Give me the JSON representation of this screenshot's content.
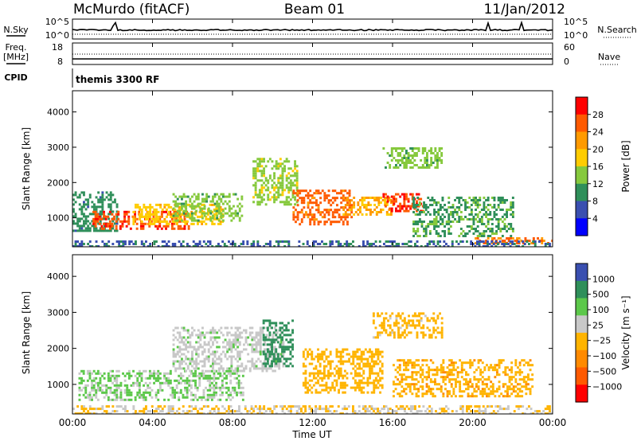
{
  "header": {
    "station": "McMurdo (fitACF)",
    "beam": "Beam 01",
    "date": "11/Jan/2012"
  },
  "noise_panel": {
    "left_label": "N.Sky",
    "right_label": "N.Search",
    "left_ticks": [
      "10^5",
      "10^0"
    ],
    "right_ticks": [
      "10^5",
      "10^0"
    ]
  },
  "freq_panel": {
    "left_label_1": "Freq.",
    "left_label_2": "[MHz]",
    "right_label": "Nave",
    "left_ticks": [
      "18",
      "8"
    ],
    "right_ticks": [
      "60",
      "0"
    ]
  },
  "cpid_panel": {
    "label": "CPID",
    "mode": "themis 3300 RF"
  },
  "power_panel": {
    "ylabel": "Slant Range [km]",
    "yticks": [
      "4000",
      "3000",
      "2000",
      "1000"
    ],
    "colorbar_label": "Power [dB]",
    "colorbar_ticks": [
      "28",
      "24",
      "20",
      "16",
      "12",
      "8",
      "4"
    ],
    "colors": [
      "#ff0000",
      "#ff5a00",
      "#ff9a00",
      "#ffcc00",
      "#86c93d",
      "#2f8f5a",
      "#3a4fb0",
      "#0000ff"
    ]
  },
  "velocity_panel": {
    "ylabel": "Slant Range [km]",
    "yticks": [
      "4000",
      "3000",
      "2000",
      "1000"
    ],
    "colorbar_label": "Velocity [m s⁻¹]",
    "colorbar_ticks": [
      "1000",
      "500",
      "100",
      "25",
      "−25",
      "−100",
      "−500",
      "−1000"
    ],
    "colors": [
      "#3a4fb0",
      "#2f8f5a",
      "#5cc84a",
      "#c8c8c8",
      "#ffb400",
      "#ff8a00",
      "#ff5a00",
      "#ff0000"
    ]
  },
  "xaxis": {
    "ticks": [
      "00:00",
      "04:00",
      "08:00",
      "12:00",
      "16:00",
      "20:00",
      "00:00"
    ],
    "label": "Time UT"
  },
  "chart_data": {
    "type": "heatmap",
    "title": "McMurdo (fitACF) Beam 01 11/Jan/2012",
    "xlabel": "Time UT",
    "ylabel": "Slant Range [km]",
    "xlim": [
      0,
      24
    ],
    "ylim": [
      180,
      4600
    ],
    "series": [
      {
        "name": "Power [dB]",
        "clim": [
          0,
          30
        ],
        "regions": [
          {
            "t0": 0.0,
            "t1": 2.2,
            "r0": 600,
            "r1": 1750,
            "v": 8
          },
          {
            "t0": 1.0,
            "t1": 5.8,
            "r0": 700,
            "r1": 1200,
            "v": 27
          },
          {
            "t0": 3.0,
            "t1": 7.5,
            "r0": 800,
            "r1": 1400,
            "v": 18
          },
          {
            "t0": 5.0,
            "t1": 8.5,
            "r0": 900,
            "r1": 1700,
            "v": 12
          },
          {
            "t0": 9.0,
            "t1": 11.2,
            "r0": 1400,
            "r1": 2700,
            "v": 14
          },
          {
            "t0": 11.0,
            "t1": 14.0,
            "r0": 800,
            "r1": 1800,
            "v": 25
          },
          {
            "t0": 13.5,
            "t1": 16.0,
            "r0": 1100,
            "r1": 1600,
            "v": 20
          },
          {
            "t0": 15.5,
            "t1": 17.5,
            "r0": 1200,
            "r1": 1700,
            "v": 28
          },
          {
            "t0": 15.5,
            "t1": 18.5,
            "r0": 2400,
            "r1": 3000,
            "v": 12
          },
          {
            "t0": 17.0,
            "t1": 22.0,
            "r0": 500,
            "r1": 1600,
            "v": 10
          },
          {
            "t0": 20.0,
            "t1": 24.0,
            "r0": 250,
            "r1": 450,
            "v": 24
          },
          {
            "t0": 0.0,
            "t1": 24.0,
            "r0": 180,
            "r1": 360,
            "v": 6
          }
        ]
      },
      {
        "name": "Velocity [m s⁻¹]",
        "clim": [
          -1000,
          1000
        ],
        "regions": [
          {
            "t0": 0.3,
            "t1": 8.5,
            "r0": 600,
            "r1": 1400,
            "v": 300
          },
          {
            "t0": 5.0,
            "t1": 10.5,
            "r0": 1400,
            "r1": 2600,
            "v": 200
          },
          {
            "t0": 9.5,
            "t1": 11.0,
            "r0": 1500,
            "r1": 2800,
            "v": 700
          },
          {
            "t0": 11.5,
            "t1": 15.5,
            "r0": 800,
            "r1": 2000,
            "v": -150
          },
          {
            "t0": 15.0,
            "t1": 18.5,
            "r0": 2300,
            "r1": 3000,
            "v": -100
          },
          {
            "t0": 16.0,
            "t1": 23.0,
            "r0": 700,
            "r1": 1700,
            "v": -200
          },
          {
            "t0": 0.0,
            "t1": 24.0,
            "r0": 180,
            "r1": 420,
            "v": 0
          }
        ]
      }
    ]
  }
}
